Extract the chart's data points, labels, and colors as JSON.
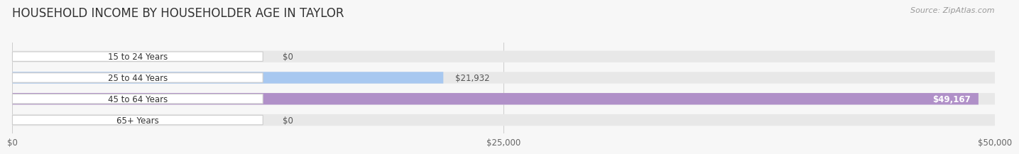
{
  "title": "HOUSEHOLD INCOME BY HOUSEHOLDER AGE IN TAYLOR",
  "source": "Source: ZipAtlas.com",
  "categories": [
    "15 to 24 Years",
    "25 to 44 Years",
    "45 to 64 Years",
    "65+ Years"
  ],
  "values": [
    0,
    21932,
    49167,
    0
  ],
  "bar_colors": [
    "#f0a0a8",
    "#a8c8f0",
    "#b090c8",
    "#80c8d0"
  ],
  "track_color": "#e8e8e8",
  "value_labels": [
    "$0",
    "$21,932",
    "$49,167",
    "$0"
  ],
  "xlim": [
    0,
    50000
  ],
  "xticks": [
    0,
    25000,
    50000
  ],
  "xticklabels": [
    "$0",
    "$25,000",
    "$50,000"
  ],
  "background_color": "#f7f7f7",
  "title_fontsize": 12,
  "bar_height": 0.55,
  "figsize": [
    14.06,
    2.33
  ]
}
